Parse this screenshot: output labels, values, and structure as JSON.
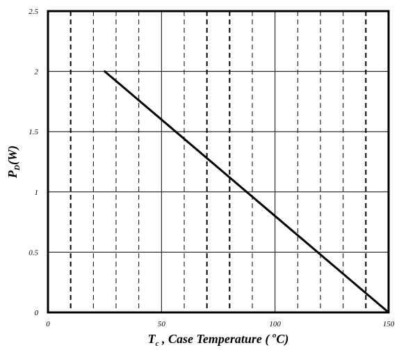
{
  "chart_data": {
    "type": "line",
    "title": "",
    "xlabel": {
      "main": "T",
      "subscript": "c",
      "text": " , Case Temperature ( ",
      "superscript": "o",
      "unit": "C)"
    },
    "ylabel": {
      "main": "P",
      "subscript": "D",
      "text": "(W)"
    },
    "xlim": [
      0,
      150
    ],
    "ylim": [
      0,
      2.5
    ],
    "x_ticks": [
      {
        "value": 0,
        "label": "0"
      },
      {
        "value": 50,
        "label": "50"
      },
      {
        "value": 100,
        "label": "100"
      },
      {
        "value": 150,
        "label": "150"
      }
    ],
    "y_ticks": [
      {
        "value": 0,
        "label": "0"
      },
      {
        "value": 0.5,
        "label": "0.5"
      },
      {
        "value": 1,
        "label": "1"
      },
      {
        "value": 1.5,
        "label": "1.5"
      },
      {
        "value": 2,
        "label": "2"
      },
      {
        "value": 2.5,
        "label": "2.5"
      }
    ],
    "grid": {
      "solid_x": [
        50,
        100
      ],
      "dashed_x": [
        10,
        20,
        30,
        40,
        60,
        70,
        80,
        90,
        110,
        120,
        130,
        140
      ],
      "bold_dashed_x": [
        10,
        70,
        80,
        140
      ],
      "solid_y": [
        0.5,
        1,
        1.5,
        2
      ]
    },
    "series": [
      {
        "color": "#000000",
        "x": [
          25,
          150
        ],
        "y": [
          2,
          0
        ]
      }
    ]
  }
}
